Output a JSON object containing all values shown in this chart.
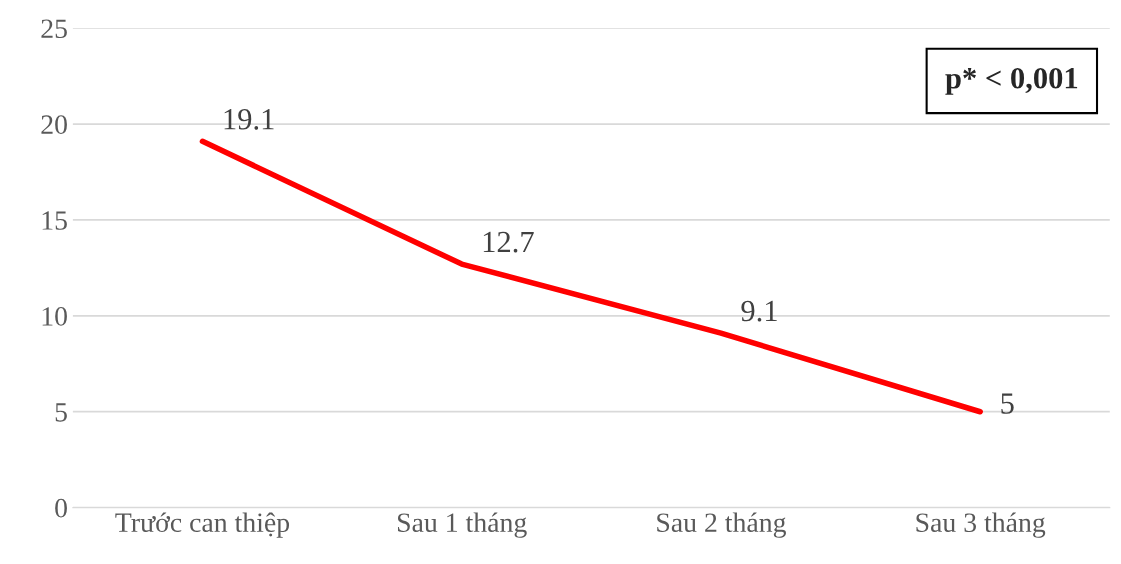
{
  "chart_data": {
    "type": "line",
    "categories": [
      "Trước can thiệp",
      "Sau 1 tháng",
      "Sau 2 tháng",
      "Sau 3 tháng"
    ],
    "series": [
      {
        "color": "#ff0000",
        "values": [
          19.1,
          12.7,
          9.1,
          5
        ]
      }
    ],
    "ylim": [
      0,
      25
    ],
    "yticks": [
      0,
      5,
      10,
      15,
      20,
      25
    ],
    "grid": "y",
    "data_labels": true,
    "annotations": [
      "p* < 0,001"
    ]
  }
}
